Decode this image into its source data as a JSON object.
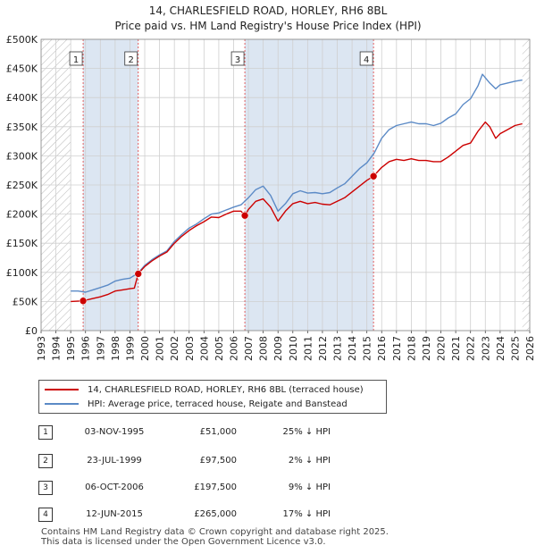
{
  "title": {
    "line1": "14, CHARLESFIELD ROAD, HORLEY, RH6 8BL",
    "line2": "Price paid vs. HM Land Registry's House Price Index (HPI)"
  },
  "colors": {
    "price_line": "#cc0000",
    "hpi_line": "#5b8ac6",
    "shade": "#dce6f2",
    "marker_line": "#e05050",
    "grid": "#cfcfcf"
  },
  "chart_data": {
    "type": "line",
    "title": "Price paid vs. HM Land Registry's House Price Index (HPI)",
    "xlim": [
      1993,
      2026
    ],
    "ylim": [
      0,
      500000
    ],
    "y_ticks": [
      {
        "value": 0,
        "label": "£0"
      },
      {
        "value": 50000,
        "label": "£50K"
      },
      {
        "value": 100000,
        "label": "£100K"
      },
      {
        "value": 150000,
        "label": "£150K"
      },
      {
        "value": 200000,
        "label": "£200K"
      },
      {
        "value": 250000,
        "label": "£250K"
      },
      {
        "value": 300000,
        "label": "£300K"
      },
      {
        "value": 350000,
        "label": "£350K"
      },
      {
        "value": 400000,
        "label": "£400K"
      },
      {
        "value": 450000,
        "label": "£450K"
      },
      {
        "value": 500000,
        "label": "£500K"
      }
    ],
    "x_ticks": [
      "1993",
      "1994",
      "1995",
      "1996",
      "1997",
      "1998",
      "1999",
      "2000",
      "2001",
      "2002",
      "2003",
      "2004",
      "2005",
      "2006",
      "2007",
      "2008",
      "2009",
      "2010",
      "2011",
      "2012",
      "2013",
      "2014",
      "2015",
      "2016",
      "2017",
      "2018",
      "2019",
      "2020",
      "2021",
      "2022",
      "2023",
      "2024",
      "2025",
      "2026"
    ],
    "data_start_year": 1995,
    "series": [
      {
        "name": "14, CHARLESFIELD ROAD, HORLEY, RH6 8BL (terraced house)",
        "color": "#cc0000",
        "points": [
          [
            1995.0,
            50000
          ],
          [
            1995.84,
            51000
          ],
          [
            1996.5,
            55000
          ],
          [
            1997.0,
            58000
          ],
          [
            1997.5,
            62000
          ],
          [
            1998.0,
            68000
          ],
          [
            1998.5,
            70000
          ],
          [
            1999.0,
            72000
          ],
          [
            1999.3,
            73000
          ],
          [
            1999.56,
            97500
          ],
          [
            2000.0,
            110000
          ],
          [
            2000.5,
            120000
          ],
          [
            2001.0,
            128000
          ],
          [
            2001.5,
            135000
          ],
          [
            2002.0,
            150000
          ],
          [
            2002.5,
            162000
          ],
          [
            2003.0,
            172000
          ],
          [
            2003.5,
            180000
          ],
          [
            2004.0,
            187000
          ],
          [
            2004.5,
            195000
          ],
          [
            2005.0,
            194000
          ],
          [
            2005.5,
            200000
          ],
          [
            2006.0,
            205000
          ],
          [
            2006.5,
            205000
          ],
          [
            2006.76,
            197500
          ],
          [
            2007.0,
            208000
          ],
          [
            2007.5,
            222000
          ],
          [
            2008.0,
            226000
          ],
          [
            2008.5,
            212000
          ],
          [
            2009.0,
            188000
          ],
          [
            2009.5,
            205000
          ],
          [
            2010.0,
            218000
          ],
          [
            2010.5,
            222000
          ],
          [
            2011.0,
            218000
          ],
          [
            2011.5,
            220000
          ],
          [
            2012.0,
            217000
          ],
          [
            2012.5,
            216000
          ],
          [
            2013.0,
            222000
          ],
          [
            2013.5,
            228000
          ],
          [
            2014.0,
            238000
          ],
          [
            2014.5,
            248000
          ],
          [
            2015.0,
            258000
          ],
          [
            2015.45,
            265000
          ],
          [
            2016.0,
            280000
          ],
          [
            2016.5,
            290000
          ],
          [
            2017.0,
            294000
          ],
          [
            2017.5,
            292000
          ],
          [
            2018.0,
            295000
          ],
          [
            2018.5,
            292000
          ],
          [
            2019.0,
            292000
          ],
          [
            2019.5,
            290000
          ],
          [
            2020.0,
            290000
          ],
          [
            2020.5,
            298000
          ],
          [
            2021.0,
            308000
          ],
          [
            2021.5,
            318000
          ],
          [
            2022.0,
            322000
          ],
          [
            2022.5,
            342000
          ],
          [
            2023.0,
            358000
          ],
          [
            2023.3,
            350000
          ],
          [
            2023.7,
            330000
          ],
          [
            2024.0,
            338000
          ],
          [
            2024.5,
            345000
          ],
          [
            2025.0,
            352000
          ],
          [
            2025.5,
            355000
          ]
        ]
      },
      {
        "name": "HPI: Average price, terraced house, Reigate and Banstead",
        "color": "#5b8ac6",
        "points": [
          [
            1995.0,
            68000
          ],
          [
            1995.5,
            68000
          ],
          [
            1996.0,
            66000
          ],
          [
            1996.5,
            70000
          ],
          [
            1997.0,
            74000
          ],
          [
            1997.5,
            78000
          ],
          [
            1998.0,
            85000
          ],
          [
            1998.5,
            88000
          ],
          [
            1999.0,
            90000
          ],
          [
            1999.56,
            99000
          ],
          [
            2000.0,
            112000
          ],
          [
            2000.5,
            122000
          ],
          [
            2001.0,
            130000
          ],
          [
            2001.5,
            137000
          ],
          [
            2002.0,
            153000
          ],
          [
            2002.5,
            165000
          ],
          [
            2003.0,
            176000
          ],
          [
            2003.5,
            183000
          ],
          [
            2004.0,
            192000
          ],
          [
            2004.5,
            200000
          ],
          [
            2005.0,
            202000
          ],
          [
            2005.5,
            207000
          ],
          [
            2006.0,
            212000
          ],
          [
            2006.5,
            216000
          ],
          [
            2007.0,
            228000
          ],
          [
            2007.5,
            242000
          ],
          [
            2008.0,
            248000
          ],
          [
            2008.5,
            232000
          ],
          [
            2009.0,
            205000
          ],
          [
            2009.5,
            218000
          ],
          [
            2010.0,
            235000
          ],
          [
            2010.5,
            240000
          ],
          [
            2011.0,
            236000
          ],
          [
            2011.5,
            237000
          ],
          [
            2012.0,
            235000
          ],
          [
            2012.5,
            237000
          ],
          [
            2013.0,
            245000
          ],
          [
            2013.5,
            252000
          ],
          [
            2014.0,
            265000
          ],
          [
            2014.5,
            278000
          ],
          [
            2015.0,
            288000
          ],
          [
            2015.5,
            305000
          ],
          [
            2016.0,
            330000
          ],
          [
            2016.5,
            345000
          ],
          [
            2017.0,
            352000
          ],
          [
            2017.5,
            355000
          ],
          [
            2018.0,
            358000
          ],
          [
            2018.5,
            355000
          ],
          [
            2019.0,
            355000
          ],
          [
            2019.5,
            352000
          ],
          [
            2020.0,
            356000
          ],
          [
            2020.5,
            365000
          ],
          [
            2021.0,
            372000
          ],
          [
            2021.5,
            388000
          ],
          [
            2022.0,
            398000
          ],
          [
            2022.5,
            420000
          ],
          [
            2022.8,
            440000
          ],
          [
            2023.3,
            425000
          ],
          [
            2023.7,
            415000
          ],
          [
            2024.0,
            422000
          ],
          [
            2024.5,
            425000
          ],
          [
            2025.0,
            428000
          ],
          [
            2025.5,
            430000
          ]
        ]
      }
    ],
    "transactions": [
      {
        "n": "1",
        "year": 1995.84,
        "price": 51000
      },
      {
        "n": "2",
        "year": 1999.56,
        "price": 97500
      },
      {
        "n": "3",
        "year": 2006.76,
        "price": 197500
      },
      {
        "n": "4",
        "year": 2015.45,
        "price": 265000
      }
    ],
    "shaded_ranges": [
      [
        1995.84,
        1999.56
      ],
      [
        2006.76,
        2015.45
      ]
    ],
    "hatched_ranges": [
      [
        1993,
        1995.0
      ],
      [
        2025.5,
        2026
      ]
    ]
  },
  "legend": {
    "price_label": "14, CHARLESFIELD ROAD, HORLEY, RH6 8BL (terraced house)",
    "hpi_label": "HPI: Average price, terraced house, Reigate and Banstead"
  },
  "transactions_table": [
    {
      "n": "1",
      "date": "03-NOV-1995",
      "price": "£51,000",
      "hpi": "25% ↓ HPI"
    },
    {
      "n": "2",
      "date": "23-JUL-1999",
      "price": "£97,500",
      "hpi": "2% ↓ HPI"
    },
    {
      "n": "3",
      "date": "06-OCT-2006",
      "price": "£197,500",
      "hpi": "9% ↓ HPI"
    },
    {
      "n": "4",
      "date": "12-JUN-2015",
      "price": "£265,000",
      "hpi": "17% ↓ HPI"
    }
  ],
  "footer": {
    "line1": "Contains HM Land Registry data © Crown copyright and database right 2025.",
    "line2": "This data is licensed under the Open Government Licence v3.0."
  }
}
